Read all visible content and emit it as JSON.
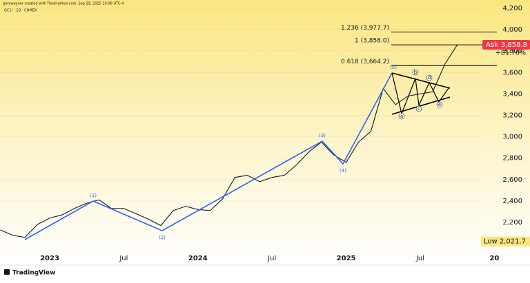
{
  "header": {
    "credit": "garywagner created with TradingView.com, Sep 29, 2025 19:08 UTC-4",
    "symbol": "GC1! · 1D · COMEX"
  },
  "chart_data": {
    "type": "line",
    "categories": [
      null,
      null,
      null,
      null,
      "2023",
      null,
      null,
      null,
      null,
      null,
      "Jul",
      null,
      null,
      null,
      null,
      null,
      "2024",
      null,
      null,
      null,
      null,
      null,
      "Jul",
      null,
      null,
      null,
      null,
      null,
      "2025",
      null,
      null,
      null,
      null,
      null,
      "Jul",
      null,
      null,
      null,
      null,
      null,
      "20",
      null,
      null
    ],
    "series": [
      {
        "color": "#131722",
        "values": [
          2130,
          2080,
          2060,
          2180,
          2240,
          2270,
          2330,
          2380,
          2410,
          2330,
          2330,
          2280,
          2230,
          2170,
          2310,
          2350,
          2320,
          2310,
          2420,
          2620,
          2640,
          2580,
          2620,
          2640,
          2740,
          2860,
          2950,
          2830,
          2760,
          2950,
          3050,
          3450,
          3300,
          3380,
          3400,
          3420,
          3680,
          3858.8,
          null,
          null,
          null,
          null,
          null
        ]
      }
    ],
    "ylim": [
      1949,
      4277
    ],
    "yticks": [
      {
        "value": 2200,
        "label": "2,200"
      },
      {
        "value": 2400,
        "label": "2,400"
      },
      {
        "value": 2600,
        "label": "2,600"
      },
      {
        "value": 2800,
        "label": "2,800"
      },
      {
        "value": 3000,
        "label": "3,000"
      },
      {
        "value": 3200,
        "label": "3,200"
      },
      {
        "value": 3400,
        "label": "3,400"
      },
      {
        "value": 3600,
        "label": "3,600"
      },
      {
        "value": 3800,
        "label": "3,800"
      },
      {
        "value": 4000,
        "label": "4,000"
      },
      {
        "value": 4200,
        "label": "4,200"
      }
    ],
    "fib_levels": [
      {
        "label": "1.236 (3,977.7)",
        "value": 3977.7
      },
      {
        "label": "1 (3,858.0)",
        "value": 3858.0
      },
      {
        "label": "0.618 (3,664.2)",
        "value": 3664.2
      }
    ],
    "wave_labels": [
      "(1)",
      "(2)",
      "(3)",
      "(4)",
      "(5)"
    ],
    "triangle_labels": [
      "a",
      "b",
      "c",
      "d",
      "e"
    ],
    "last_price": {
      "tag": "Ask",
      "value": 3858.8,
      "label": "3,858.8",
      "change": {
        "value": 81.76,
        "label": "+81.76%"
      }
    },
    "low": {
      "tag": "Low",
      "value": 2021.7,
      "label": "2,021.7"
    }
  },
  "footer": {
    "brand": "TradingView"
  }
}
